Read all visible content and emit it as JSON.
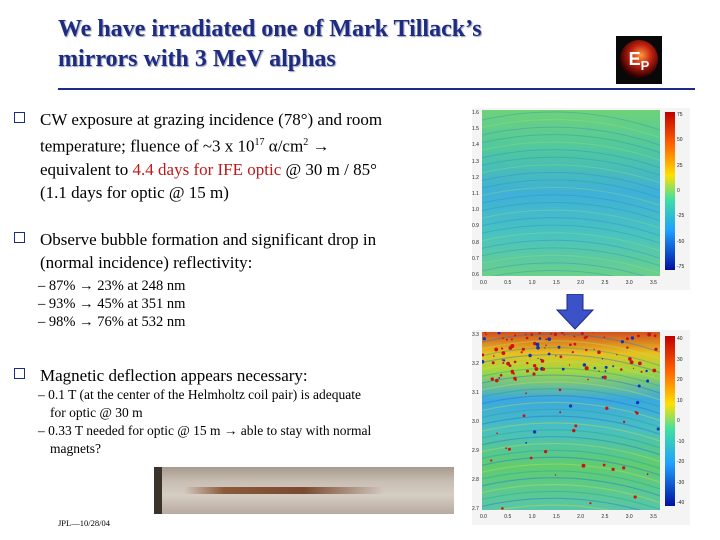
{
  "title": {
    "line1": "We have irradiated one of Mark Tillack’s",
    "line2": "mirrors with 3 MeV alphas"
  },
  "logo": {
    "letter_main": "E",
    "letter_sub": "P",
    "icon": "ep-logo-icon"
  },
  "bullets": [
    {
      "icon": "checkbox-bullet-icon",
      "lines": [
        "CW exposure at grazing incidence (78°) and room",
        "temperature; fluence of ~3 x 10",
        "17",
        " α/cm",
        "2",
        " →",
        "equivalent to ",
        "4.4 days for IFE optic",
        " @ 30 m / 85°",
        "(1.1 days for optic @ 15 m)"
      ]
    },
    {
      "icon": "checkbox-bullet-icon",
      "lines": [
        "Observe bubble formation and significant drop in",
        "(normal incidence) reflectivity:"
      ],
      "subs": [
        "– 87% → 23% at 248 nm",
        "– 93% → 45% at 351 nm",
        "– 98% → 76% at 532 nm"
      ]
    },
    {
      "icon": "checkbox-bullet-icon",
      "lines": [
        "Magnetic deflection appears necessary:"
      ],
      "subs": [
        "– 0.1 T (at the center of the Helmholtz coil pair) is adequate",
        "for optic @ 30 m",
        "– 0.33 T needed for optic @ 15 m → able to stay with normal",
        "magnets?"
      ]
    }
  ],
  "plot_top": {
    "y_ticks": [
      "1.6",
      "1.5",
      "1.4",
      "1.3",
      "1.2",
      "1.1",
      "1.0",
      "0.9",
      "0.8",
      "0.7",
      "0.6"
    ],
    "x_ticks": [
      "0.0",
      "0.5",
      "1.0",
      "1.5",
      "2.0",
      "2.5",
      "3.0",
      "3.5"
    ],
    "cbar_ticks": [
      "75",
      "50",
      "25",
      "0",
      "-25",
      "-50",
      "-75"
    ]
  },
  "plot_bottom": {
    "y_ticks": [
      "3.3",
      "3.2",
      "3.1",
      "3.0",
      "2.9",
      "2.8",
      "2.7"
    ],
    "x_ticks": [
      "0.0",
      "0.5",
      "1.0",
      "1.5",
      "2.0",
      "2.5",
      "3.0",
      "3.5"
    ],
    "cbar_ticks": [
      "40",
      "30",
      "20",
      "10",
      "0",
      "-10",
      "-20",
      "-30",
      "-40"
    ]
  },
  "arrow_icon": "down-arrow-icon",
  "footer": "JPL—10/28/04",
  "colors": {
    "title": "#1e2b82",
    "highlight": "#c01818",
    "arrow": "#3b52c9"
  }
}
